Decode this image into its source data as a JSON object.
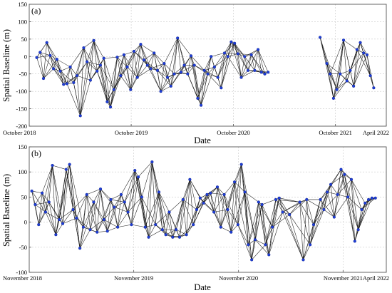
{
  "chart_data": [
    {
      "type": "network-scatter",
      "panel_label": "(a)",
      "xlabel": "Date",
      "ylabel": "Spatial Baseline (m)",
      "ylim": [
        -200,
        150
      ],
      "yticks": [
        -200,
        -150,
        -100,
        -50,
        0,
        50,
        100,
        150
      ],
      "grid": true,
      "xticks": [
        {
          "date": "2018-10-01",
          "label": "October 2018"
        },
        {
          "date": "2019-10-01",
          "label": "October 2019"
        },
        {
          "date": "2020-10-01",
          "label": "October 2020"
        },
        {
          "date": "2021-10-01",
          "label": "October 2021"
        },
        {
          "date": "2022-04-01",
          "label": "April 2022"
        }
      ],
      "xlim": [
        "2018-10-01",
        "2022-04-01"
      ],
      "points": [
        {
          "date": "2018-10-28",
          "y": -3
        },
        {
          "date": "2018-11-09",
          "y": 12
        },
        {
          "date": "2018-11-21",
          "y": -63
        },
        {
          "date": "2018-12-03",
          "y": 40
        },
        {
          "date": "2018-12-15",
          "y": 3
        },
        {
          "date": "2018-12-27",
          "y": -35
        },
        {
          "date": "2019-01-08",
          "y": -8
        },
        {
          "date": "2019-01-20",
          "y": -42
        },
        {
          "date": "2019-02-01",
          "y": -80
        },
        {
          "date": "2019-02-13",
          "y": -78
        },
        {
          "date": "2019-02-25",
          "y": -30
        },
        {
          "date": "2019-03-09",
          "y": -75
        },
        {
          "date": "2019-03-21",
          "y": -55
        },
        {
          "date": "2019-04-02",
          "y": -170
        },
        {
          "date": "2019-04-14",
          "y": 25
        },
        {
          "date": "2019-04-26",
          "y": -15
        },
        {
          "date": "2019-05-08",
          "y": -68
        },
        {
          "date": "2019-05-20",
          "y": 46
        },
        {
          "date": "2019-06-01",
          "y": -42
        },
        {
          "date": "2019-06-13",
          "y": -25
        },
        {
          "date": "2019-06-25",
          "y": -5
        },
        {
          "date": "2019-07-07",
          "y": -130
        },
        {
          "date": "2019-07-19",
          "y": -145
        },
        {
          "date": "2019-07-31",
          "y": -95
        },
        {
          "date": "2019-08-12",
          "y": -2
        },
        {
          "date": "2019-08-24",
          "y": -55
        },
        {
          "date": "2019-09-05",
          "y": 5
        },
        {
          "date": "2019-09-17",
          "y": -30
        },
        {
          "date": "2019-09-29",
          "y": -95
        },
        {
          "date": "2019-10-11",
          "y": 15
        },
        {
          "date": "2019-10-23",
          "y": -60
        },
        {
          "date": "2019-11-04",
          "y": 35
        },
        {
          "date": "2019-11-16",
          "y": -10
        },
        {
          "date": "2019-11-28",
          "y": -25
        },
        {
          "date": "2019-12-10",
          "y": -35
        },
        {
          "date": "2019-12-22",
          "y": 10
        },
        {
          "date": "2020-01-03",
          "y": -40
        },
        {
          "date": "2020-01-15",
          "y": -100
        },
        {
          "date": "2020-01-27",
          "y": -20
        },
        {
          "date": "2020-02-08",
          "y": -60
        },
        {
          "date": "2020-02-20",
          "y": -85
        },
        {
          "date": "2020-03-03",
          "y": -50
        },
        {
          "date": "2020-03-15",
          "y": 53
        },
        {
          "date": "2020-03-27",
          "y": -45
        },
        {
          "date": "2020-04-08",
          "y": -25
        },
        {
          "date": "2020-04-20",
          "y": -50
        },
        {
          "date": "2020-05-02",
          "y": 2
        },
        {
          "date": "2020-05-14",
          "y": -25
        },
        {
          "date": "2020-05-26",
          "y": -120
        },
        {
          "date": "2020-06-07",
          "y": -140
        },
        {
          "date": "2020-06-19",
          "y": -40
        },
        {
          "date": "2020-07-01",
          "y": -50
        },
        {
          "date": "2020-07-13",
          "y": 0
        },
        {
          "date": "2020-07-25",
          "y": -30
        },
        {
          "date": "2020-08-06",
          "y": -60
        },
        {
          "date": "2020-08-18",
          "y": -90
        },
        {
          "date": "2020-08-30",
          "y": 10
        },
        {
          "date": "2020-09-11",
          "y": 0
        },
        {
          "date": "2020-09-23",
          "y": 42
        },
        {
          "date": "2020-10-05",
          "y": 38
        },
        {
          "date": "2020-10-17",
          "y": 8
        },
        {
          "date": "2020-10-29",
          "y": -60
        },
        {
          "date": "2020-11-10",
          "y": 0
        },
        {
          "date": "2020-11-22",
          "y": -40
        },
        {
          "date": "2020-12-04",
          "y": 5
        },
        {
          "date": "2020-12-16",
          "y": -40
        },
        {
          "date": "2020-12-28",
          "y": 20
        },
        {
          "date": "2021-01-09",
          "y": -45
        },
        {
          "date": "2021-01-21",
          "y": -50
        },
        {
          "date": "2021-02-02",
          "y": -45
        },
        {
          "date": "2021-08-07",
          "y": 55
        },
        {
          "date": "2021-08-31",
          "y": -20
        },
        {
          "date": "2021-09-12",
          "y": -50
        },
        {
          "date": "2021-09-24",
          "y": -120
        },
        {
          "date": "2021-10-06",
          "y": -95
        },
        {
          "date": "2021-10-18",
          "y": -50
        },
        {
          "date": "2021-10-30",
          "y": 47
        },
        {
          "date": "2021-11-11",
          "y": -70
        },
        {
          "date": "2021-11-23",
          "y": -40
        },
        {
          "date": "2021-12-05",
          "y": -85
        },
        {
          "date": "2021-12-17",
          "y": 20
        },
        {
          "date": "2021-12-29",
          "y": 40
        },
        {
          "date": "2022-01-10",
          "y": 10
        },
        {
          "date": "2022-01-22",
          "y": 5
        },
        {
          "date": "2022-02-03",
          "y": -55
        },
        {
          "date": "2022-02-15",
          "y": -90
        }
      ]
    },
    {
      "type": "network-scatter",
      "panel_label": "(b)",
      "xlabel": "Date",
      "ylabel": "Spatial Baseline (m)",
      "ylim": [
        -100,
        150
      ],
      "yticks": [
        -100,
        -50,
        0,
        50,
        100,
        150
      ],
      "grid": true,
      "xticks": [
        {
          "date": "2018-11-01",
          "label": "November 2018"
        },
        {
          "date": "2019-11-01",
          "label": "November 2019"
        },
        {
          "date": "2020-11-01",
          "label": "November 2020"
        },
        {
          "date": "2021-11-01",
          "label": "November 2021"
        },
        {
          "date": "2022-04-01",
          "label": "April 2022"
        }
      ],
      "xlim": [
        "2018-11-01",
        "2022-04-01"
      ],
      "points": [
        {
          "date": "2018-11-10",
          "y": 62
        },
        {
          "date": "2018-11-22",
          "y": 35
        },
        {
          "date": "2018-12-04",
          "y": -5
        },
        {
          "date": "2018-12-16",
          "y": 58
        },
        {
          "date": "2018-12-28",
          "y": 20
        },
        {
          "date": "2019-01-09",
          "y": 40
        },
        {
          "date": "2019-01-21",
          "y": 113
        },
        {
          "date": "2019-02-02",
          "y": -25
        },
        {
          "date": "2019-02-14",
          "y": 5
        },
        {
          "date": "2019-02-26",
          "y": -3
        },
        {
          "date": "2019-03-10",
          "y": 105
        },
        {
          "date": "2019-03-22",
          "y": 115
        },
        {
          "date": "2019-04-03",
          "y": 25
        },
        {
          "date": "2019-04-15",
          "y": 8
        },
        {
          "date": "2019-04-27",
          "y": -52
        },
        {
          "date": "2019-05-09",
          "y": -10
        },
        {
          "date": "2019-05-21",
          "y": 55
        },
        {
          "date": "2019-06-02",
          "y": -15
        },
        {
          "date": "2019-06-14",
          "y": 40
        },
        {
          "date": "2019-06-26",
          "y": -20
        },
        {
          "date": "2019-07-08",
          "y": 66
        },
        {
          "date": "2019-07-20",
          "y": 5
        },
        {
          "date": "2019-08-01",
          "y": -18
        },
        {
          "date": "2019-08-13",
          "y": 45
        },
        {
          "date": "2019-08-25",
          "y": 30
        },
        {
          "date": "2019-09-06",
          "y": -10
        },
        {
          "date": "2019-09-18",
          "y": 55
        },
        {
          "date": "2019-09-30",
          "y": 40
        },
        {
          "date": "2019-10-12",
          "y": 20
        },
        {
          "date": "2019-10-24",
          "y": -5
        },
        {
          "date": "2019-11-05",
          "y": 103
        },
        {
          "date": "2019-11-17",
          "y": 90
        },
        {
          "date": "2019-11-29",
          "y": 50
        },
        {
          "date": "2019-12-11",
          "y": -10
        },
        {
          "date": "2019-12-23",
          "y": -30
        },
        {
          "date": "2020-01-04",
          "y": 120
        },
        {
          "date": "2020-01-16",
          "y": -5
        },
        {
          "date": "2020-01-28",
          "y": 60
        },
        {
          "date": "2020-02-09",
          "y": -15
        },
        {
          "date": "2020-02-21",
          "y": -25
        },
        {
          "date": "2020-03-04",
          "y": 20
        },
        {
          "date": "2020-03-16",
          "y": -30
        },
        {
          "date": "2020-03-28",
          "y": -15
        },
        {
          "date": "2020-04-09",
          "y": -30
        },
        {
          "date": "2020-04-21",
          "y": 45
        },
        {
          "date": "2020-05-03",
          "y": -25
        },
        {
          "date": "2020-05-15",
          "y": 85
        },
        {
          "date": "2020-05-27",
          "y": -5
        },
        {
          "date": "2020-06-08",
          "y": 25
        },
        {
          "date": "2020-06-20",
          "y": 48
        },
        {
          "date": "2020-07-02",
          "y": 38
        },
        {
          "date": "2020-07-14",
          "y": 55
        },
        {
          "date": "2020-07-26",
          "y": 58
        },
        {
          "date": "2020-08-07",
          "y": 20
        },
        {
          "date": "2020-08-19",
          "y": 70
        },
        {
          "date": "2020-08-31",
          "y": -10
        },
        {
          "date": "2020-09-12",
          "y": 55
        },
        {
          "date": "2020-09-24",
          "y": 25
        },
        {
          "date": "2020-10-06",
          "y": -20
        },
        {
          "date": "2020-10-18",
          "y": 80
        },
        {
          "date": "2020-10-30",
          "y": -5
        },
        {
          "date": "2020-11-11",
          "y": 115
        },
        {
          "date": "2020-11-23",
          "y": 60
        },
        {
          "date": "2020-12-05",
          "y": -45
        },
        {
          "date": "2020-12-17",
          "y": -75
        },
        {
          "date": "2020-12-29",
          "y": -35
        },
        {
          "date": "2021-01-10",
          "y": 40
        },
        {
          "date": "2021-01-22",
          "y": 35
        },
        {
          "date": "2021-02-03",
          "y": -45
        },
        {
          "date": "2021-02-15",
          "y": -65
        },
        {
          "date": "2021-02-27",
          "y": -10
        },
        {
          "date": "2021-03-11",
          "y": 45
        },
        {
          "date": "2021-03-23",
          "y": 48
        },
        {
          "date": "2021-04-04",
          "y": 20
        },
        {
          "date": "2021-04-28",
          "y": 15
        },
        {
          "date": "2021-06-03",
          "y": 40
        },
        {
          "date": "2021-06-15",
          "y": -75
        },
        {
          "date": "2021-06-27",
          "y": 45
        },
        {
          "date": "2021-07-09",
          "y": -45
        },
        {
          "date": "2021-07-21",
          "y": -5
        },
        {
          "date": "2021-08-14",
          "y": 45
        },
        {
          "date": "2021-08-26",
          "y": 25
        },
        {
          "date": "2021-09-07",
          "y": 60
        },
        {
          "date": "2021-09-19",
          "y": 75
        },
        {
          "date": "2021-10-01",
          "y": 10
        },
        {
          "date": "2021-10-13",
          "y": 55
        },
        {
          "date": "2021-10-25",
          "y": 105
        },
        {
          "date": "2021-11-06",
          "y": 95
        },
        {
          "date": "2021-11-18",
          "y": 50
        },
        {
          "date": "2021-11-30",
          "y": 85
        },
        {
          "date": "2021-12-12",
          "y": -38
        },
        {
          "date": "2021-12-24",
          "y": -15
        },
        {
          "date": "2022-01-05",
          "y": 25
        },
        {
          "date": "2022-01-17",
          "y": 38
        },
        {
          "date": "2022-01-29",
          "y": 45
        },
        {
          "date": "2022-02-10",
          "y": 48
        },
        {
          "date": "2022-02-22",
          "y": 48
        }
      ]
    }
  ]
}
